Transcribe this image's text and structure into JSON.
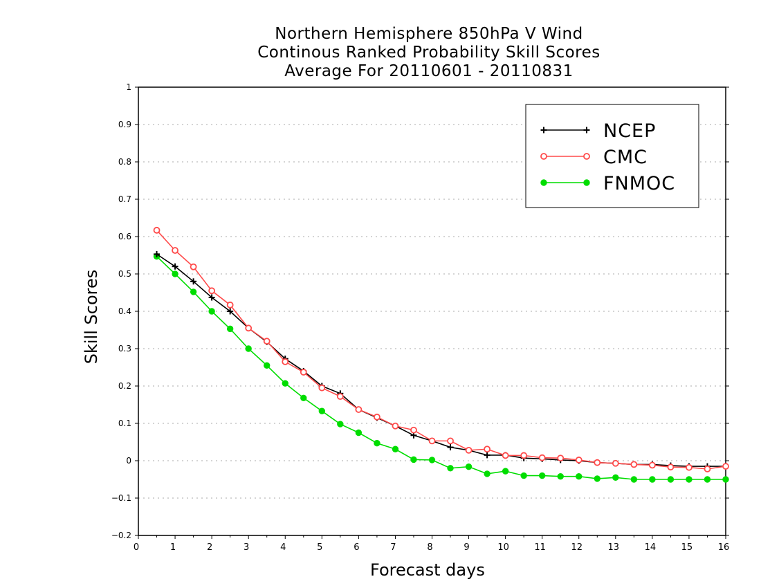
{
  "title_lines": [
    "Northern Hemisphere 850hPa V Wind",
    "Continous Ranked Probability Skill Scores",
    "Average For 20110601 - 20110831"
  ],
  "chart_data": {
    "type": "line",
    "title": "Northern Hemisphere 850hPa V Wind / Continous Ranked Probability Skill Scores / Average For 20110601 - 20110831",
    "xlabel": "Forecast days",
    "ylabel": "Skill Scores",
    "xlim": [
      0,
      16
    ],
    "ylim": [
      -0.2,
      1
    ],
    "x_ticks": [
      "0",
      "1",
      "2",
      "3",
      "4",
      "5",
      "6",
      "7",
      "8",
      "9",
      "10",
      "11",
      "12",
      "13",
      "14",
      "15",
      "16"
    ],
    "y_ticks": [
      "-0.2",
      "-0.1",
      "0",
      "0.1",
      "0.2",
      "0.3",
      "0.4",
      "0.5",
      "0.6",
      "0.7",
      "0.8",
      "0.9",
      "1"
    ],
    "grid": "horizontal dotted",
    "legend_position": "top-right",
    "x": [
      0.5,
      1.0,
      1.5,
      2.0,
      2.5,
      3.0,
      3.5,
      4.0,
      4.5,
      5.0,
      5.5,
      6.0,
      6.5,
      7.0,
      7.5,
      8.0,
      8.5,
      9.0,
      9.5,
      10.0,
      10.5,
      11.0,
      11.5,
      12.0,
      12.5,
      13.0,
      13.5,
      14.0,
      14.5,
      15.0,
      15.5,
      16.0
    ],
    "series": [
      {
        "name": "NCEP",
        "color": "#000000",
        "marker": "plus",
        "values": [
          0.553,
          0.52,
          0.48,
          0.437,
          0.4,
          0.355,
          0.318,
          0.273,
          0.24,
          0.2,
          0.18,
          0.137,
          0.115,
          0.093,
          0.068,
          0.053,
          0.036,
          0.028,
          0.015,
          0.015,
          0.007,
          0.005,
          0.002,
          0.0,
          -0.005,
          -0.007,
          -0.01,
          -0.01,
          -0.013,
          -0.015,
          -0.015,
          -0.015
        ]
      },
      {
        "name": "CMC",
        "color": "#ff4a4a",
        "marker": "open-circle",
        "values": [
          0.617,
          0.563,
          0.519,
          0.455,
          0.417,
          0.355,
          0.32,
          0.265,
          0.237,
          0.195,
          0.172,
          0.137,
          0.117,
          0.093,
          0.082,
          0.053,
          0.053,
          0.028,
          0.031,
          0.014,
          0.014,
          0.008,
          0.007,
          0.002,
          -0.005,
          -0.007,
          -0.01,
          -0.012,
          -0.017,
          -0.018,
          -0.022,
          -0.015
        ]
      },
      {
        "name": "FNMOC",
        "color": "#00dd00",
        "marker": "filled-circle",
        "values": [
          0.547,
          0.5,
          0.452,
          0.4,
          0.353,
          0.3,
          0.255,
          0.207,
          0.168,
          0.133,
          0.098,
          0.075,
          0.047,
          0.031,
          0.003,
          0.002,
          -0.02,
          -0.016,
          -0.035,
          -0.028,
          -0.04,
          -0.04,
          -0.042,
          -0.042,
          -0.048,
          -0.045,
          -0.05,
          -0.05,
          -0.05,
          -0.05,
          -0.05,
          -0.05
        ]
      }
    ]
  }
}
